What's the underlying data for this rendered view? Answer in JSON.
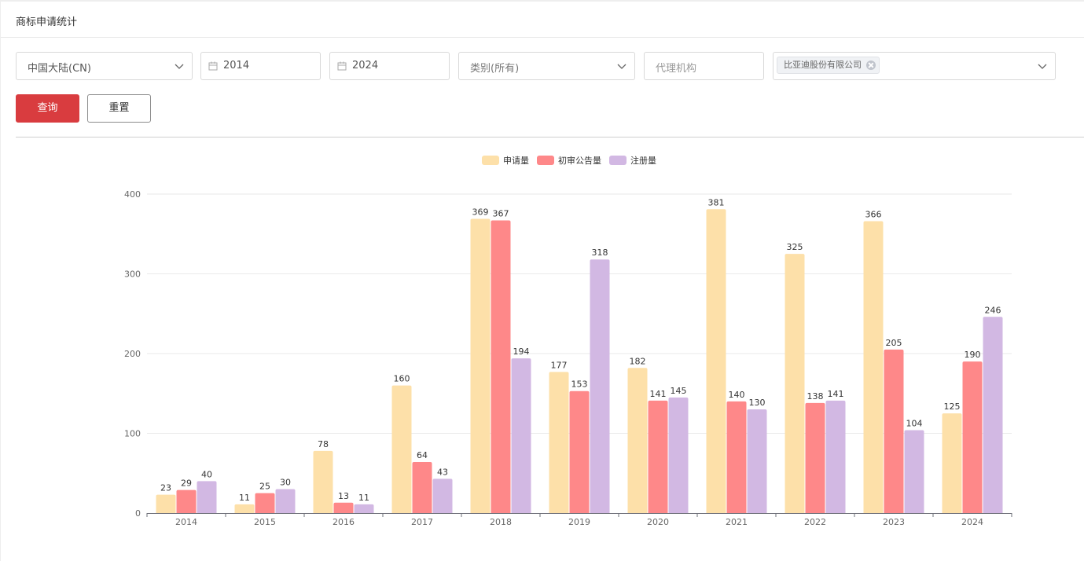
{
  "page": {
    "title": "商标申请统计"
  },
  "filters": {
    "region": {
      "value": "中国大陆(CN)"
    },
    "start_year": {
      "value": "2014"
    },
    "end_year": {
      "value": "2024"
    },
    "category": {
      "value": "类别(所有)"
    },
    "agency": {
      "placeholder": "代理机构"
    },
    "applicant": {
      "tag": "比亚迪股份有限公司"
    }
  },
  "actions": {
    "query_label": "查询",
    "reset_label": "重置"
  },
  "icons": {
    "dropdown": "chevron-down-icon",
    "date": "calendar-icon",
    "tag_remove": "close-circle-icon"
  },
  "colors": {
    "primary": "#d93c3f",
    "series1": "#fde0a9",
    "series2": "#fe8889",
    "series3": "#d2b8e3"
  },
  "chart_data": {
    "type": "bar",
    "categories": [
      "2014",
      "2015",
      "2016",
      "2017",
      "2018",
      "2019",
      "2020",
      "2021",
      "2022",
      "2023",
      "2024"
    ],
    "series": [
      {
        "name": "申请量",
        "color": "#fde0a9",
        "values": [
          23,
          11,
          78,
          160,
          369,
          177,
          182,
          381,
          325,
          366,
          125
        ]
      },
      {
        "name": "初审公告量",
        "color": "#fe8889",
        "values": [
          29,
          25,
          13,
          64,
          367,
          153,
          141,
          140,
          138,
          205,
          190
        ]
      },
      {
        "name": "注册量",
        "color": "#d2b8e3",
        "values": [
          40,
          30,
          11,
          43,
          194,
          318,
          145,
          130,
          141,
          104,
          246
        ]
      }
    ],
    "yticks": [
      0,
      100,
      200,
      300,
      400
    ],
    "ylim": [
      0,
      400
    ],
    "legend_position": "top-center",
    "grid": true,
    "data_labels": true
  }
}
